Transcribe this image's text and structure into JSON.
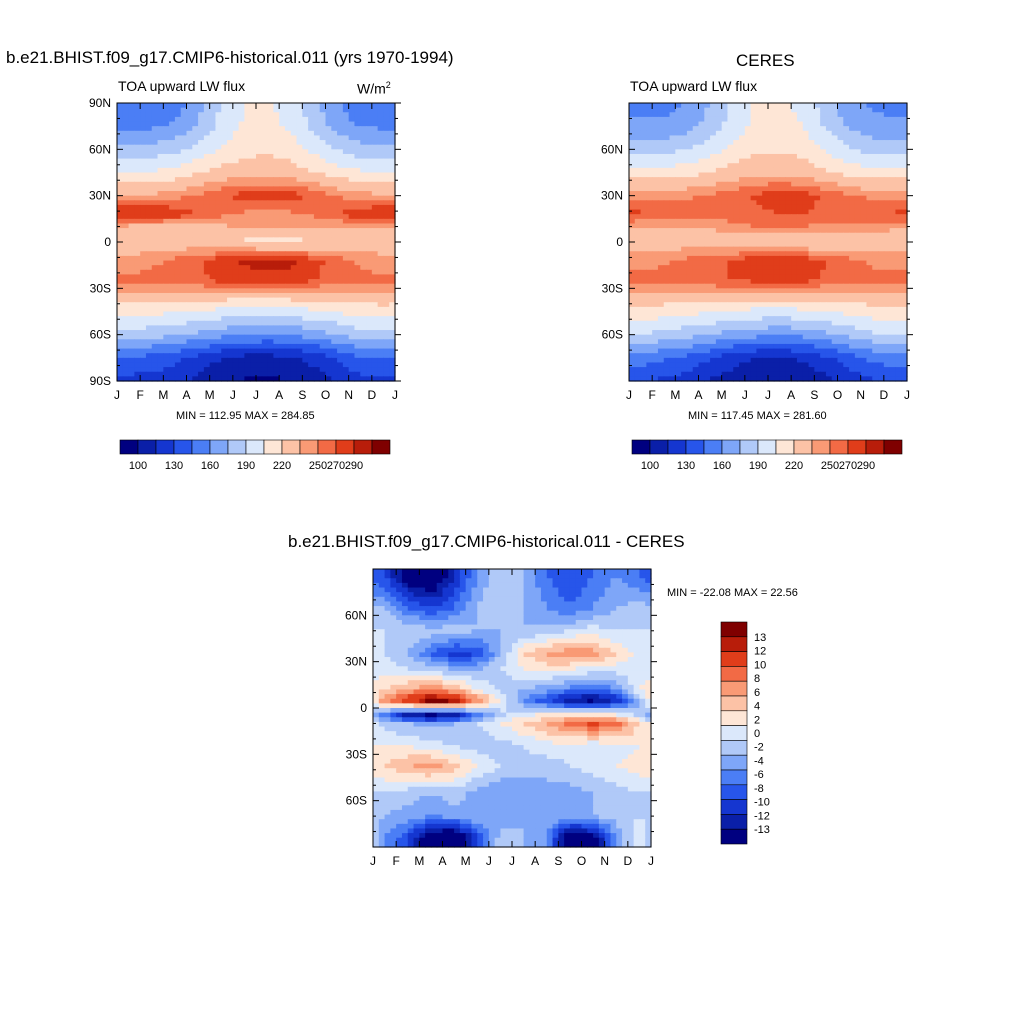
{
  "colors": {
    "seq": [
      "#000080",
      "#0a1fa8",
      "#1536d0",
      "#2755ea",
      "#4b7ef5",
      "#7ea6f8",
      "#b0c9f8",
      "#dbe8fb",
      "#fee6d6",
      "#fcc2a6",
      "#f99a75",
      "#f26a45",
      "#e03d1a",
      "#b81d0a",
      "#7f0000"
    ],
    "diff": [
      "#000080",
      "#0a1fa8",
      "#1536d0",
      "#2755ea",
      "#4b7ef5",
      "#7ea6f8",
      "#b0c9f8",
      "#dbe8fb",
      "#fee6d6",
      "#fcc2a6",
      "#f99a75",
      "#f26a45",
      "#e03d1a",
      "#b81d0a",
      "#7f0000"
    ]
  },
  "chart_data": [
    {
      "id": "model",
      "type": "heatmap",
      "title": "b.e21.BHIST.f09_g17.CMIP6-historical.011 (yrs 1970-1994)",
      "left_label": "TOA upward LW flux",
      "units": "W/m",
      "units_sup": "2",
      "xticks": [
        "J",
        "F",
        "M",
        "A",
        "M",
        "J",
        "J",
        "A",
        "S",
        "O",
        "N",
        "D",
        "J"
      ],
      "yticks": [
        "90N",
        "60N",
        "30N",
        "0",
        "30S",
        "60S",
        "90S"
      ],
      "ylim": [
        -90,
        90
      ],
      "stats": "MIN = 112.95 MAX = 284.85",
      "levels": [
        100,
        115,
        130,
        145,
        160,
        175,
        190,
        205,
        220,
        235,
        250,
        260,
        270,
        280,
        290
      ],
      "colorbar_labels": [
        "100",
        "130",
        "160",
        "190",
        "220",
        "250",
        "270",
        "290"
      ],
      "band_values": [
        {
          "lat": -90,
          "values": [
            140,
            138,
            135,
            126,
            118,
            114,
            113,
            115,
            122,
            132,
            140,
            142
          ]
        },
        {
          "lat": -75,
          "values": [
            160,
            155,
            150,
            140,
            130,
            125,
            124,
            127,
            135,
            148,
            158,
            162
          ]
        },
        {
          "lat": -60,
          "values": [
            200,
            196,
            192,
            186,
            180,
            176,
            175,
            177,
            182,
            190,
            198,
            202
          ]
        },
        {
          "lat": -40,
          "values": [
            235,
            234,
            232,
            230,
            228,
            226,
            226,
            227,
            229,
            232,
            235,
            236
          ]
        },
        {
          "lat": -25,
          "values": [
            262,
            263,
            265,
            268,
            272,
            275,
            277,
            275,
            270,
            266,
            263,
            262
          ]
        },
        {
          "lat": -12,
          "values": [
            255,
            258,
            262,
            268,
            276,
            282,
            284,
            283,
            274,
            264,
            258,
            255
          ]
        },
        {
          "lat": 0,
          "values": [
            238,
            240,
            242,
            240,
            236,
            232,
            228,
            230,
            234,
            238,
            240,
            240
          ]
        },
        {
          "lat": 10,
          "values": [
            248,
            246,
            244,
            244,
            248,
            252,
            252,
            250,
            250,
            250,
            250,
            250
          ]
        },
        {
          "lat": 18,
          "values": [
            282,
            282,
            278,
            270,
            262,
            258,
            256,
            258,
            262,
            270,
            278,
            282
          ]
        },
        {
          "lat": 30,
          "values": [
            252,
            252,
            256,
            262,
            268,
            274,
            276,
            274,
            268,
            260,
            254,
            252
          ]
        },
        {
          "lat": 45,
          "values": [
            222,
            222,
            226,
            234,
            240,
            244,
            244,
            242,
            236,
            228,
            222,
            222
          ]
        },
        {
          "lat": 60,
          "values": [
            196,
            196,
            200,
            210,
            222,
            230,
            232,
            228,
            216,
            204,
            196,
            196
          ]
        },
        {
          "lat": 75,
          "values": [
            172,
            172,
            178,
            192,
            210,
            222,
            224,
            218,
            200,
            184,
            174,
            172
          ]
        },
        {
          "lat": 90,
          "values": [
            160,
            160,
            168,
            184,
            206,
            220,
            222,
            214,
            194,
            176,
            164,
            160
          ]
        }
      ]
    },
    {
      "id": "obs",
      "type": "heatmap",
      "title": "CERES",
      "left_label": "TOA upward LW flux",
      "xticks": [
        "J",
        "F",
        "M",
        "A",
        "M",
        "J",
        "J",
        "A",
        "S",
        "O",
        "N",
        "D",
        "J"
      ],
      "yticks": [
        "60N",
        "30N",
        "0",
        "30S",
        "60S"
      ],
      "ylim": [
        -90,
        90
      ],
      "stats": "MIN = 117.45 MAX = 281.60",
      "levels": [
        100,
        115,
        130,
        145,
        160,
        175,
        190,
        205,
        220,
        235,
        250,
        260,
        270,
        280,
        290
      ],
      "colorbar_labels": [
        "100",
        "130",
        "160",
        "190",
        "220",
        "250",
        "270",
        "290"
      ],
      "band_values": [
        {
          "lat": -90,
          "values": [
            145,
            142,
            138,
            128,
            122,
            118,
            117,
            119,
            126,
            136,
            144,
            146
          ]
        },
        {
          "lat": -75,
          "values": [
            168,
            162,
            156,
            146,
            136,
            130,
            128,
            132,
            142,
            154,
            164,
            168
          ]
        },
        {
          "lat": -60,
          "values": [
            205,
            200,
            196,
            190,
            184,
            180,
            178,
            180,
            186,
            194,
            202,
            206
          ]
        },
        {
          "lat": -40,
          "values": [
            238,
            236,
            234,
            232,
            230,
            228,
            228,
            229,
            231,
            234,
            237,
            238
          ]
        },
        {
          "lat": -25,
          "values": [
            264,
            265,
            266,
            268,
            270,
            272,
            274,
            272,
            268,
            266,
            264,
            264
          ]
        },
        {
          "lat": -12,
          "values": [
            256,
            258,
            262,
            266,
            272,
            278,
            280,
            278,
            270,
            262,
            258,
            256
          ]
        },
        {
          "lat": 0,
          "values": [
            240,
            242,
            244,
            242,
            238,
            234,
            232,
            234,
            236,
            240,
            242,
            242
          ]
        },
        {
          "lat": 10,
          "values": [
            250,
            250,
            250,
            252,
            256,
            260,
            262,
            260,
            258,
            256,
            254,
            252
          ]
        },
        {
          "lat": 18,
          "values": [
            272,
            270,
            268,
            266,
            266,
            268,
            270,
            270,
            268,
            268,
            270,
            272
          ]
        },
        {
          "lat": 30,
          "values": [
            256,
            256,
            258,
            262,
            266,
            272,
            276,
            274,
            268,
            262,
            258,
            256
          ]
        },
        {
          "lat": 45,
          "values": [
            226,
            226,
            230,
            236,
            242,
            246,
            246,
            244,
            238,
            230,
            226,
            226
          ]
        },
        {
          "lat": 60,
          "values": [
            200,
            200,
            204,
            212,
            224,
            232,
            234,
            230,
            218,
            206,
            200,
            200
          ]
        },
        {
          "lat": 75,
          "values": [
            178,
            178,
            184,
            196,
            212,
            224,
            226,
            220,
            202,
            188,
            180,
            178
          ]
        },
        {
          "lat": 90,
          "values": [
            170,
            170,
            176,
            190,
            208,
            222,
            224,
            216,
            196,
            180,
            172,
            170
          ]
        }
      ]
    },
    {
      "id": "diff",
      "type": "heatmap",
      "title": "b.e21.BHIST.f09_g17.CMIP6-historical.011 - CERES",
      "xticks": [
        "J",
        "F",
        "M",
        "A",
        "M",
        "J",
        "J",
        "A",
        "S",
        "O",
        "N",
        "D",
        "J"
      ],
      "yticks": [
        "60N",
        "30N",
        "0",
        "30S",
        "60S"
      ],
      "ylim": [
        -90,
        90
      ],
      "stats": "MIN = -22.08 MAX =  22.56",
      "levels": [
        -13,
        -12,
        -10,
        -8,
        -6,
        -4,
        -2,
        0,
        2,
        4,
        6,
        8,
        10,
        12,
        13
      ],
      "colorbar_labels": [
        "13",
        "12",
        "10",
        "8",
        "6",
        "4",
        "2",
        "0",
        "-2",
        "-4",
        "-6",
        "-8",
        "-10",
        "-12",
        "-13"
      ],
      "band_values": [
        {
          "lat": -85,
          "values": [
            -4,
            -8,
            -16,
            -18,
            -8,
            -1,
            -2,
            -4,
            -16,
            -14,
            -4,
            2
          ]
        },
        {
          "lat": -70,
          "values": [
            -2,
            -3,
            -4,
            -3,
            -2,
            -3,
            -2,
            -2,
            -3,
            -2,
            -1,
            0
          ]
        },
        {
          "lat": -55,
          "values": [
            0,
            -1,
            -2,
            -1,
            -3,
            -4,
            -4,
            -3,
            -3,
            -2,
            -1,
            0
          ]
        },
        {
          "lat": -38,
          "values": [
            4,
            6,
            7,
            5,
            2,
            0,
            -1,
            -1,
            0,
            1,
            2,
            3
          ]
        },
        {
          "lat": -25,
          "values": [
            2,
            2,
            1,
            0,
            -1,
            -1,
            0,
            1,
            1,
            0,
            1,
            2
          ]
        },
        {
          "lat": -10,
          "values": [
            -1,
            -2,
            -3,
            -2,
            0,
            2,
            4,
            6,
            9,
            11,
            9,
            4
          ]
        },
        {
          "lat": -5,
          "values": [
            -6,
            -12,
            -14,
            -12,
            -6,
            -1,
            2,
            3,
            4,
            4,
            3,
            -1
          ]
        },
        {
          "lat": 5,
          "values": [
            8,
            12,
            15,
            14,
            8,
            2,
            -4,
            -8,
            -12,
            -13,
            -10,
            -2
          ]
        },
        {
          "lat": 12,
          "values": [
            4,
            6,
            8,
            6,
            2,
            -1,
            -2,
            -3,
            -5,
            -6,
            -4,
            2
          ]
        },
        {
          "lat": 25,
          "values": [
            1,
            0,
            -1,
            -2,
            -2,
            0,
            2,
            3,
            2,
            1,
            1,
            1
          ]
        },
        {
          "lat": 35,
          "values": [
            0,
            -2,
            -6,
            -9,
            -8,
            -2,
            4,
            6,
            8,
            7,
            4,
            1
          ]
        },
        {
          "lat": 50,
          "values": [
            0,
            0,
            -1,
            -1,
            -2,
            -2,
            -2,
            -1,
            0,
            1,
            0,
            0
          ]
        },
        {
          "lat": 65,
          "values": [
            -2,
            -6,
            -8,
            -6,
            -2,
            0,
            -2,
            -4,
            -6,
            -4,
            -2,
            -1
          ]
        },
        {
          "lat": 85,
          "values": [
            -8,
            -14,
            -16,
            -10,
            -4,
            0,
            -2,
            -6,
            -8,
            -6,
            -4,
            -6
          ]
        }
      ]
    }
  ]
}
